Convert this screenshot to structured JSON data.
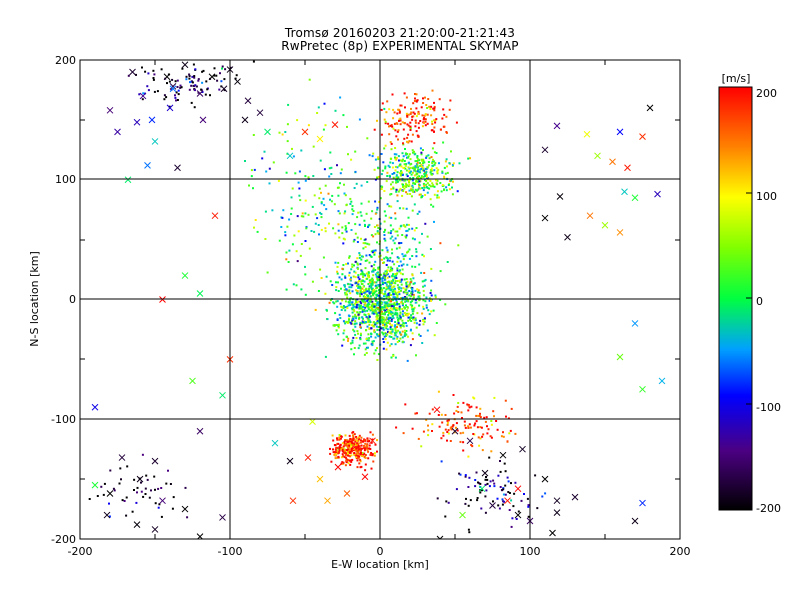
{
  "chart_data": {
    "type": "scatter",
    "title": "Tromsø 20160203 21:20:00-21:21:43",
    "subtitle": "RwPretec (8p) EXPERIMENTAL SKYMAP",
    "xlabel": "E-W location [km]",
    "ylabel": "N-S location [km]",
    "xlim": [
      -200,
      200
    ],
    "ylim": [
      -200,
      200
    ],
    "grid": true,
    "x_ticks": [
      "-200",
      "-100",
      "0",
      "100",
      "200"
    ],
    "y_ticks": [
      "-200",
      "-100",
      "0",
      "100",
      "200"
    ],
    "colorbar": {
      "label": "[m/s]",
      "range": [
        -200,
        200
      ],
      "ticks": [
        "-200",
        "-100",
        "0",
        "100",
        "200"
      ],
      "colormap": [
        "#000000",
        "#4b0082",
        "#0000ff",
        "#00c8ff",
        "#00ff40",
        "#a0ff00",
        "#ffff00",
        "#ff8000",
        "#ff0000"
      ]
    },
    "series": [
      {
        "marker": "x",
        "points": [
          [
            -180,
            158,
            -150
          ],
          [
            -165,
            190,
            -180
          ],
          [
            -158,
            170,
            -140
          ],
          [
            -142,
            186,
            -200
          ],
          [
            -138,
            178,
            -170
          ],
          [
            -130,
            196,
            -190
          ],
          [
            -120,
            172,
            -160
          ],
          [
            -112,
            186,
            -200
          ],
          [
            -104,
            176,
            -185
          ],
          [
            -100,
            192,
            -190
          ],
          [
            -95,
            182,
            -195
          ],
          [
            -88,
            166,
            -175
          ],
          [
            -175,
            140,
            -130
          ],
          [
            -162,
            148,
            -120
          ],
          [
            -150,
            132,
            -30
          ],
          [
            -135,
            110,
            -180
          ],
          [
            -155,
            112,
            -60
          ],
          [
            -168,
            100,
            -10
          ],
          [
            -140,
            160,
            -110
          ],
          [
            -118,
            150,
            -150
          ],
          [
            -90,
            150,
            -190
          ],
          [
            -80,
            156,
            -175
          ],
          [
            -75,
            140,
            -10
          ],
          [
            -60,
            120,
            -30
          ],
          [
            -50,
            140,
            180
          ],
          [
            -40,
            134,
            100
          ],
          [
            -30,
            146,
            190
          ],
          [
            -110,
            70,
            190
          ],
          [
            -130,
            20,
            10
          ],
          [
            -120,
            5,
            -5
          ],
          [
            -145,
            0,
            200
          ],
          [
            -100,
            -50,
            180
          ],
          [
            -125,
            -68,
            30
          ],
          [
            -190,
            -90,
            -100
          ],
          [
            -120,
            -110,
            -160
          ],
          [
            -105,
            -80,
            -10
          ],
          [
            -150,
            -135,
            -180
          ],
          [
            -160,
            -150,
            -190
          ],
          [
            -172,
            -132,
            -175
          ],
          [
            -180,
            -162,
            -200
          ],
          [
            -145,
            -168,
            -150
          ],
          [
            -130,
            -175,
            -200
          ],
          [
            -182,
            -180,
            -190
          ],
          [
            -162,
            -188,
            -195
          ],
          [
            -150,
            -192,
            -185
          ],
          [
            -120,
            -198,
            -200
          ],
          [
            -105,
            -182,
            -170
          ],
          [
            -190,
            -155,
            10
          ],
          [
            -70,
            -120,
            -30
          ],
          [
            -60,
            -135,
            -190
          ],
          [
            -40,
            -150,
            120
          ],
          [
            -35,
            -168,
            130
          ],
          [
            -22,
            -162,
            160
          ],
          [
            -28,
            -140,
            200
          ],
          [
            -15,
            -128,
            150
          ],
          [
            -10,
            -148,
            200
          ],
          [
            -5,
            -118,
            190
          ],
          [
            -48,
            -132,
            190
          ],
          [
            -58,
            -168,
            180
          ],
          [
            -45,
            -102,
            80
          ],
          [
            38,
            -92,
            200
          ],
          [
            50,
            -110,
            -180
          ],
          [
            60,
            -118,
            -170
          ],
          [
            70,
            -145,
            -190
          ],
          [
            82,
            -130,
            -200
          ],
          [
            95,
            -125,
            -185
          ],
          [
            110,
            -150,
            -200
          ],
          [
            118,
            -178,
            -190
          ],
          [
            100,
            -185,
            -160
          ],
          [
            75,
            -172,
            -175
          ],
          [
            68,
            -158,
            -10
          ],
          [
            85,
            -168,
            190
          ],
          [
            92,
            -158,
            200
          ],
          [
            55,
            -180,
            40
          ],
          [
            40,
            -200,
            -200
          ],
          [
            115,
            -195,
            -200
          ],
          [
            170,
            -185,
            -190
          ],
          [
            130,
            -165,
            -180
          ],
          [
            170,
            85,
            10
          ],
          [
            150,
            62,
            60
          ],
          [
            185,
            88,
            -120
          ],
          [
            160,
            -48,
            40
          ],
          [
            170,
            -20,
            -50
          ],
          [
            175,
            -75,
            20
          ],
          [
            188,
            -68,
            -40
          ],
          [
            175,
            -170,
            -80
          ],
          [
            140,
            70,
            150
          ],
          [
            160,
            140,
            -90
          ],
          [
            175,
            136,
            180
          ],
          [
            138,
            138,
            90
          ],
          [
            118,
            145,
            -140
          ],
          [
            110,
            125,
            -180
          ],
          [
            145,
            120,
            60
          ],
          [
            155,
            115,
            150
          ],
          [
            165,
            110,
            190
          ],
          [
            180,
            160,
            -200
          ],
          [
            120,
            86,
            -195
          ],
          [
            118,
            -168,
            -185
          ],
          [
            110,
            68,
            -200
          ],
          [
            125,
            52,
            -190
          ],
          [
            163,
            90,
            -30
          ],
          [
            160,
            56,
            140
          ],
          [
            92,
            -180,
            -200
          ],
          [
            -138,
            176,
            -60
          ],
          [
            -152,
            150,
            -80
          ]
        ]
      },
      {
        "marker": "dot",
        "clusters": [
          {
            "center": [
              0,
              -5
            ],
            "spread": [
              26,
              30
            ],
            "count": 1200,
            "velocity": 10
          },
          {
            "center": [
              25,
              105
            ],
            "spread": [
              22,
              18
            ],
            "count": 380,
            "velocity": 25
          },
          {
            "center": [
              -18,
              -125
            ],
            "spread": [
              12,
              12
            ],
            "count": 320,
            "velocity": 190
          },
          {
            "center": [
              22,
              150
            ],
            "spread": [
              22,
              18
            ],
            "count": 160,
            "velocity": 185
          },
          {
            "center": [
              5,
              45
            ],
            "spread": [
              30,
              35
            ],
            "count": 240,
            "velocity": 0
          },
          {
            "center": [
              55,
              -105
            ],
            "spread": [
              30,
              20
            ],
            "count": 130,
            "velocity": 170
          },
          {
            "center": [
              -130,
              180
            ],
            "spread": [
              35,
              15
            ],
            "count": 100,
            "velocity": -180
          },
          {
            "center": [
              75,
              -160
            ],
            "spread": [
              30,
              25
            ],
            "count": 90,
            "velocity": -170
          },
          {
            "center": [
              -40,
              80
            ],
            "spread": [
              40,
              70
            ],
            "count": 200,
            "velocity": 5
          },
          {
            "center": [
              -160,
              -160
            ],
            "spread": [
              25,
              25
            ],
            "count": 50,
            "velocity": -190
          }
        ]
      }
    ]
  }
}
